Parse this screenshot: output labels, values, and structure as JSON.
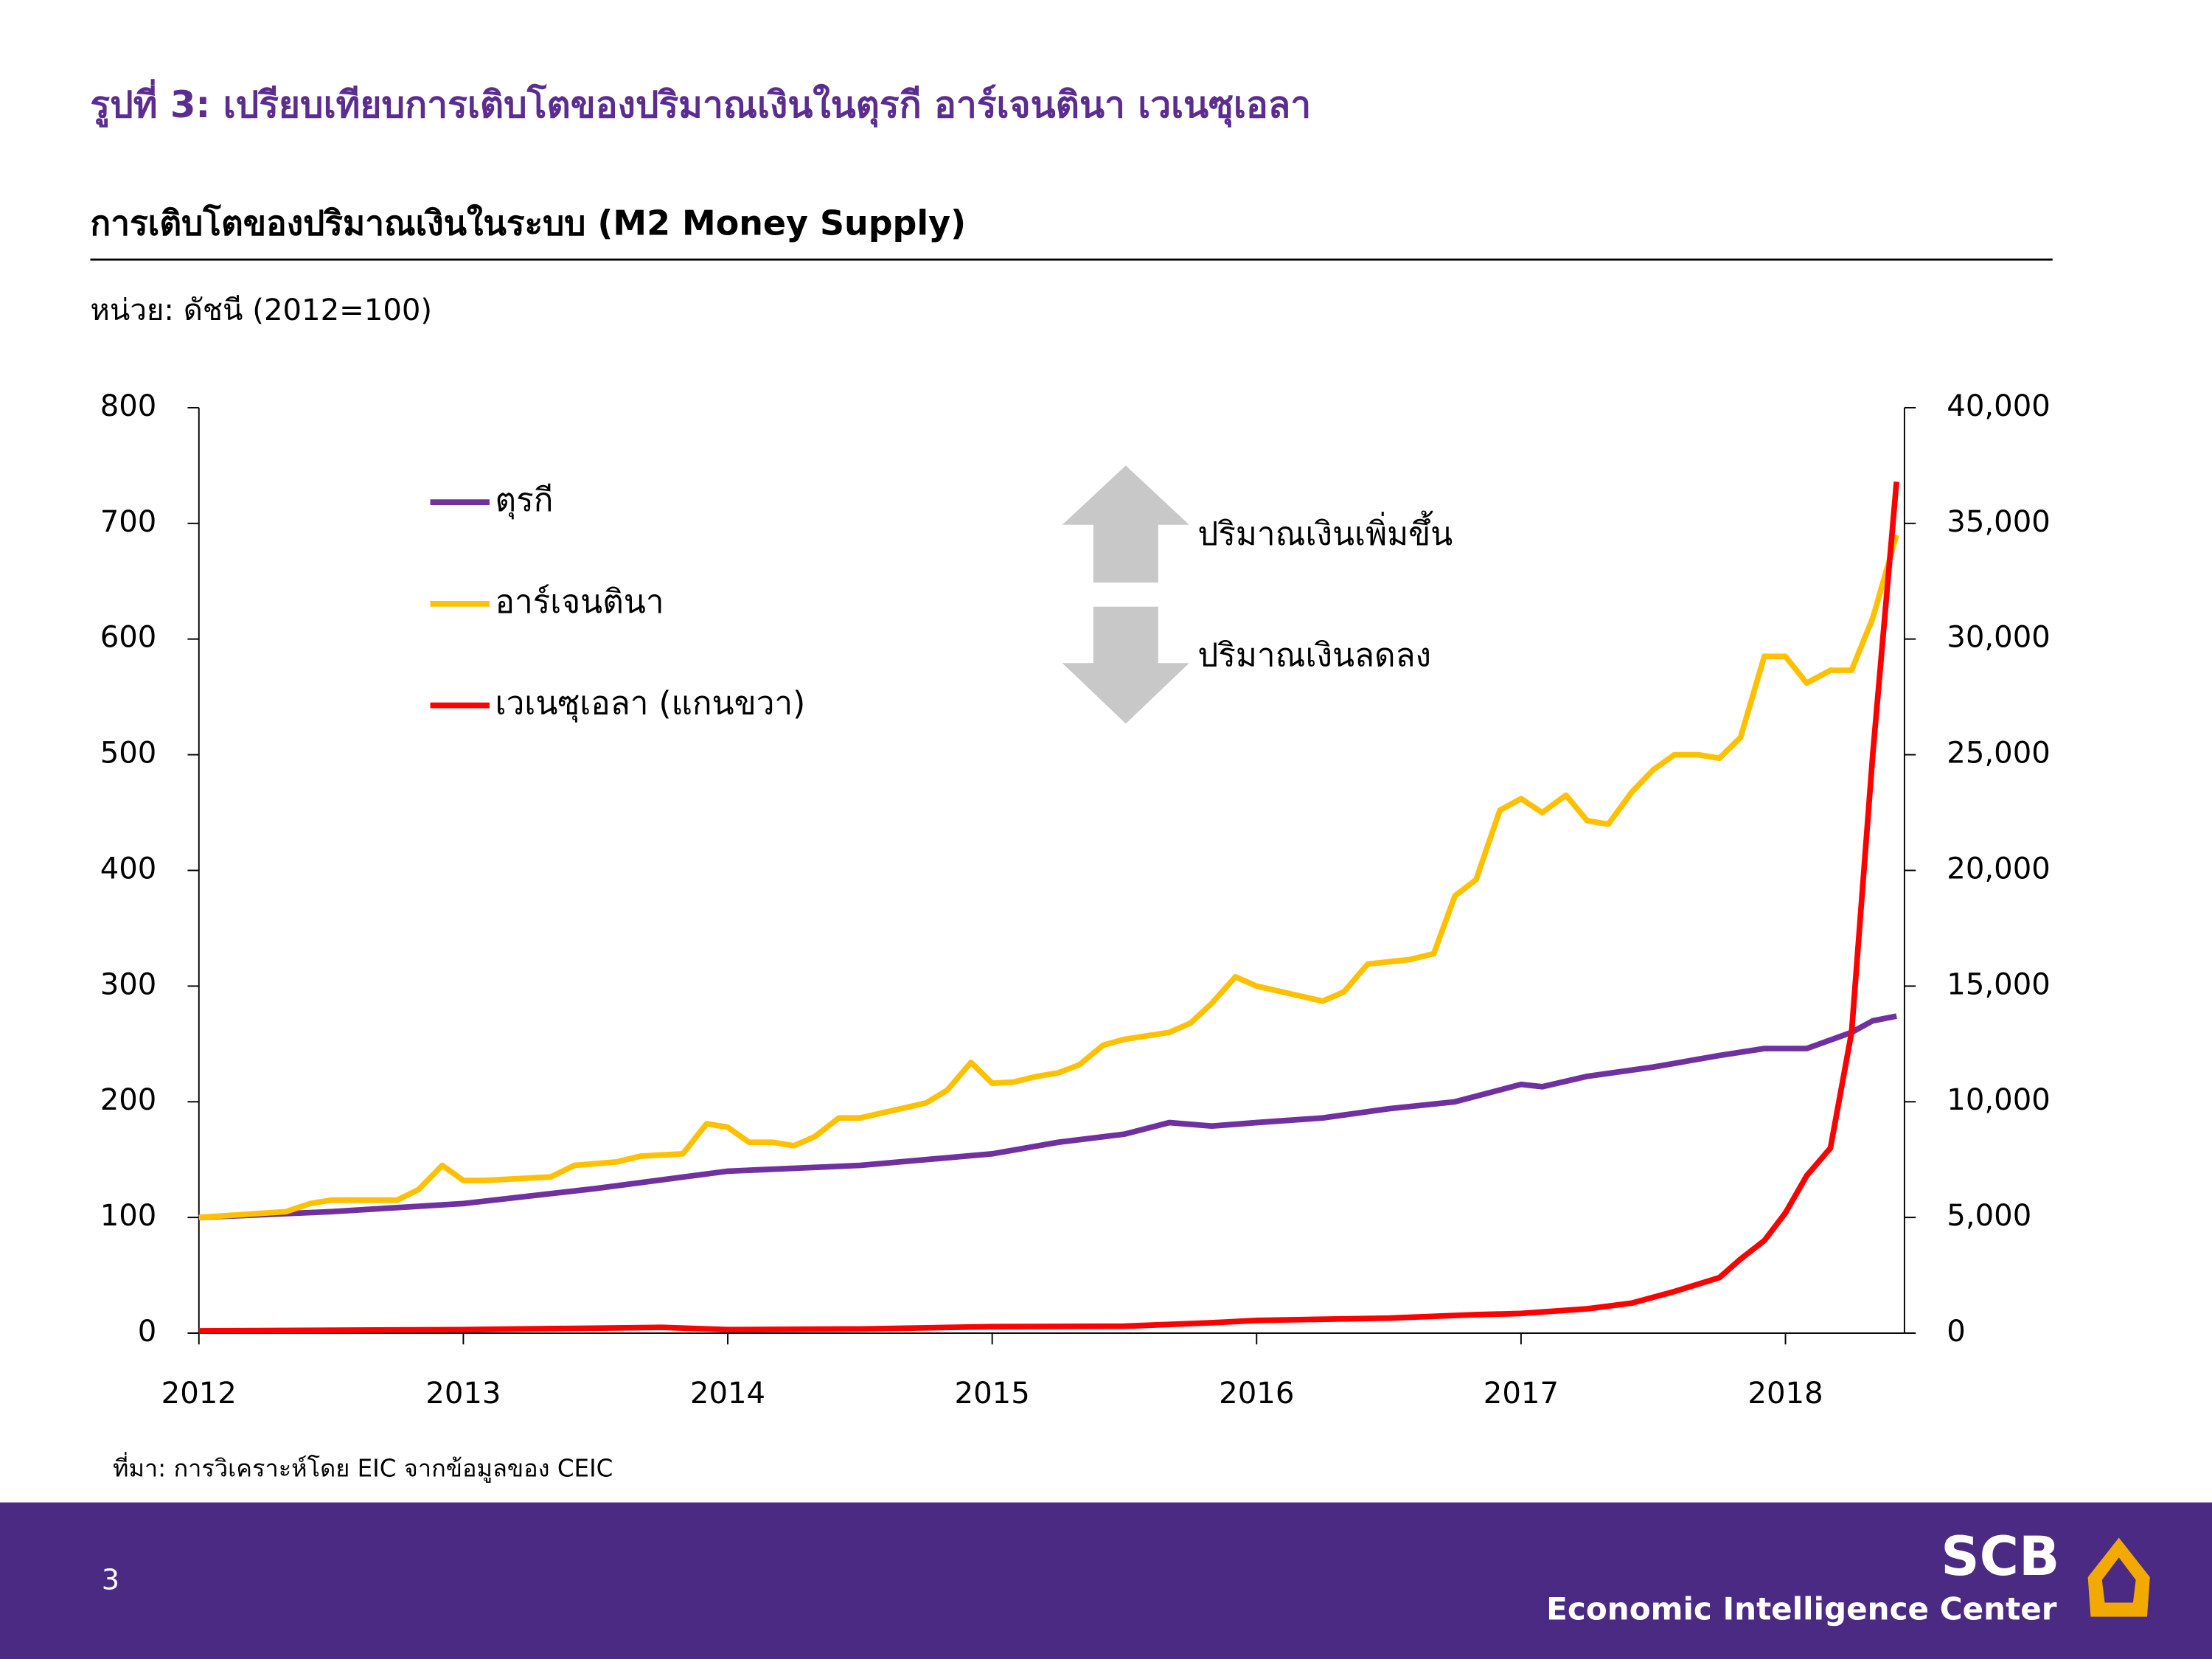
{
  "chart_data": {
    "type": "line",
    "title": "รูปที่ 3: เปรียบเทียบการเติบโตของปริมาณเงินในตุรกี อาร์เจนตินา เวเนซุเอลา",
    "subtitle": "การเติบโตของปริมาณเงินในระบบ (M2 Money Supply)",
    "unit_label": "หน่วย: ดัชนี (2012=100)",
    "source": "ที่มา: การวิเคราะห์โดย EIC จากข้อมูลของ CEIC",
    "annotations": [
      "ปริมาณเงินเพิ่มขึ้น",
      "ปริมาณเงินลดลง"
    ],
    "xlim": [
      2012,
      2018.45
    ],
    "xticks": [
      2012,
      2013,
      2014,
      2015,
      2016,
      2017,
      2018
    ],
    "ylim": [
      0,
      800
    ],
    "yticks": [
      0,
      100,
      200,
      300,
      400,
      500,
      600,
      700,
      800
    ],
    "y2lim": [
      0,
      40000
    ],
    "y2ticks": [
      0,
      {
        "value": 5000,
        "label": "5,000"
      },
      {
        "value": 10000,
        "label": "10,000"
      },
      {
        "value": 15000,
        "label": "15,000"
      },
      {
        "value": 20000,
        "label": "20,000"
      },
      {
        "value": 25000,
        "label": "25,000"
      },
      {
        "value": 30000,
        "label": "30,000"
      },
      {
        "value": 35000,
        "label": "35,000"
      },
      {
        "value": 40000,
        "label": "40,000"
      }
    ],
    "legend_position": "upper left",
    "series": [
      {
        "name": "ตุรกี",
        "color": "#7030a0",
        "x": [
          2012,
          2012.5,
          2013,
          2013.5,
          2014,
          2014.5,
          2014.75,
          2015,
          2015.25,
          2015.5,
          2015.67,
          2015.83,
          2016,
          2016.25,
          2016.5,
          2016.75,
          2017,
          2017.08,
          2017.25,
          2017.5,
          2017.75,
          2017.92,
          2018.08,
          2018.25,
          2018.33,
          2018.42
        ],
        "values": [
          100,
          105,
          112,
          125,
          140,
          145,
          150,
          155,
          165,
          172,
          182,
          179,
          182,
          186,
          194,
          200,
          215,
          213,
          222,
          230,
          240,
          246,
          246,
          260,
          270,
          274
        ]
      },
      {
        "name": "อาร์เจนตินา",
        "color": "#ffc000",
        "x": [
          2012,
          2012.33,
          2012.42,
          2012.5,
          2012.75,
          2012.83,
          2012.92,
          2013,
          2013.08,
          2013.33,
          2013.42,
          2013.58,
          2013.67,
          2013.83,
          2013.92,
          2014,
          2014.08,
          2014.17,
          2014.25,
          2014.33,
          2014.42,
          2014.5,
          2014.75,
          2014.83,
          2014.92,
          2015,
          2015.08,
          2015.17,
          2015.25,
          2015.33,
          2015.42,
          2015.5,
          2015.67,
          2015.75,
          2015.83,
          2015.92,
          2016,
          2016.25,
          2016.33,
          2016.42,
          2016.58,
          2016.67,
          2016.75,
          2016.83,
          2016.92,
          2017,
          2017.08,
          2017.17,
          2017.25,
          2017.33,
          2017.42,
          2017.5,
          2017.58,
          2017.67,
          2017.75,
          2017.83,
          2017.92,
          2018,
          2018.08,
          2018.17,
          2018.25,
          2018.33,
          2018.42
        ],
        "values": [
          100,
          105,
          112,
          115,
          115,
          124,
          145,
          132,
          132,
          135,
          145,
          148,
          153,
          155,
          181,
          178,
          165,
          165,
          162,
          170,
          186,
          186,
          199,
          210,
          234,
          216,
          217,
          222,
          225,
          232,
          249,
          254,
          260,
          268,
          285,
          308,
          300,
          287,
          295,
          319,
          323,
          328,
          378,
          392,
          452,
          462,
          450,
          465,
          443,
          440,
          468,
          487,
          500,
          500,
          497,
          515,
          585,
          585,
          562,
          573,
          573,
          618,
          690
        ]
      },
      {
        "name": "เวเนซุเอลา (แกนขวา)",
        "color": "#ff0000",
        "axis": "y2",
        "x": [
          2012,
          2013,
          2013.75,
          2014,
          2014.5,
          2015,
          2015.5,
          2015.83,
          2016,
          2016.5,
          2016.83,
          2017,
          2017.25,
          2017.42,
          2017.58,
          2017.75,
          2017.83,
          2017.92,
          2018,
          2018.08,
          2018.17,
          2018.25,
          2018.33,
          2018.42
        ],
        "values": [
          100,
          150,
          250,
          150,
          180,
          280,
          300,
          450,
          550,
          650,
          800,
          850,
          1050,
          1300,
          1800,
          2400,
          3200,
          4000,
          5200,
          6800,
          8000,
          13000,
          25000,
          36800
        ]
      }
    ]
  },
  "footer": {
    "page_number": "3",
    "brand": "SCB",
    "organization": "Economic Intelligence Center"
  }
}
